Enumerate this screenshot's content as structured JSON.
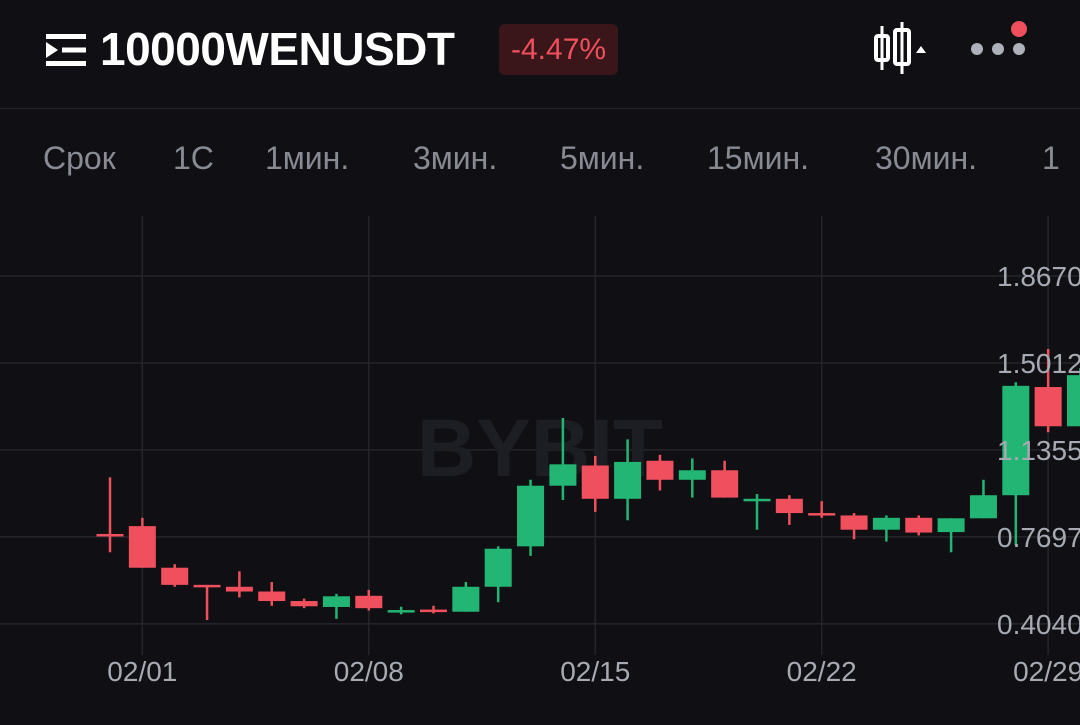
{
  "header": {
    "pair": "10000WENUSDT",
    "change": "-4.47%",
    "icons": [
      "menu-icon",
      "candlestick-chart-icon",
      "more-icon",
      "notification-dot"
    ]
  },
  "tabs": [
    "Срок",
    "1С",
    "1мин.",
    "3мин.",
    "5мин.",
    "15мин.",
    "30мин.",
    "1"
  ],
  "colors": {
    "up": "#22b573",
    "down": "#f0505d",
    "background": "#101014",
    "grid": "#24252b"
  },
  "watermark": "BYBIT",
  "chart_data": {
    "type": "candlestick",
    "x_ticks": [
      "02/01",
      "02/08",
      "02/15",
      "02/22",
      "02/29"
    ],
    "y_ticks": [
      "1.8670",
      "1.5012",
      "1.1355",
      "0.7697",
      "0.4040"
    ],
    "ylim": [
      0.2,
      2.1
    ],
    "grid": true,
    "candles": [
      {
        "date": "01/31",
        "open": 0.782,
        "high": 1.02,
        "low": 0.705,
        "close": 0.78
      },
      {
        "date": "02/01",
        "open": 0.815,
        "high": 0.85,
        "low": 0.64,
        "close": 0.64
      },
      {
        "date": "02/02",
        "open": 0.64,
        "high": 0.655,
        "low": 0.56,
        "close": 0.568
      },
      {
        "date": "02/03",
        "open": 0.568,
        "high": 0.568,
        "low": 0.42,
        "close": 0.56
      },
      {
        "date": "02/04",
        "open": 0.56,
        "high": 0.625,
        "low": 0.515,
        "close": 0.54
      },
      {
        "date": "02/05",
        "open": 0.54,
        "high": 0.58,
        "low": 0.48,
        "close": 0.5
      },
      {
        "date": "02/06",
        "open": 0.5,
        "high": 0.51,
        "low": 0.47,
        "close": 0.478
      },
      {
        "date": "02/07",
        "open": 0.475,
        "high": 0.53,
        "low": 0.425,
        "close": 0.52
      },
      {
        "date": "02/08",
        "open": 0.522,
        "high": 0.547,
        "low": 0.46,
        "close": 0.47
      },
      {
        "date": "02/09",
        "open": 0.46,
        "high": 0.476,
        "low": 0.444,
        "close": 0.462
      },
      {
        "date": "02/10",
        "open": 0.464,
        "high": 0.48,
        "low": 0.448,
        "close": 0.455
      },
      {
        "date": "02/11",
        "open": 0.455,
        "high": 0.58,
        "low": 0.455,
        "close": 0.56
      },
      {
        "date": "02/12",
        "open": 0.56,
        "high": 0.73,
        "low": 0.495,
        "close": 0.72
      },
      {
        "date": "02/13",
        "open": 0.73,
        "high": 1.01,
        "low": 0.69,
        "close": 0.985
      },
      {
        "date": "02/14",
        "open": 0.985,
        "high": 1.27,
        "low": 0.925,
        "close": 1.075
      },
      {
        "date": "02/15",
        "open": 1.07,
        "high": 1.11,
        "low": 0.875,
        "close": 0.93
      },
      {
        "date": "02/16",
        "open": 0.93,
        "high": 1.18,
        "low": 0.84,
        "close": 1.085
      },
      {
        "date": "02/17",
        "open": 1.09,
        "high": 1.115,
        "low": 0.965,
        "close": 1.01
      },
      {
        "date": "02/18",
        "open": 1.01,
        "high": 1.1,
        "low": 0.935,
        "close": 1.05
      },
      {
        "date": "02/19",
        "open": 1.05,
        "high": 1.09,
        "low": 0.935,
        "close": 0.935
      },
      {
        "date": "02/20",
        "open": 0.93,
        "high": 0.95,
        "low": 0.8,
        "close": 0.93
      },
      {
        "date": "02/21",
        "open": 0.93,
        "high": 0.945,
        "low": 0.82,
        "close": 0.87
      },
      {
        "date": "02/22",
        "open": 0.87,
        "high": 0.92,
        "low": 0.85,
        "close": 0.868
      },
      {
        "date": "02/23",
        "open": 0.86,
        "high": 0.87,
        "low": 0.76,
        "close": 0.8
      },
      {
        "date": "02/24",
        "open": 0.8,
        "high": 0.86,
        "low": 0.75,
        "close": 0.85
      },
      {
        "date": "02/25",
        "open": 0.85,
        "high": 0.86,
        "low": 0.776,
        "close": 0.788
      },
      {
        "date": "02/26",
        "open": 0.79,
        "high": 0.848,
        "low": 0.705,
        "close": 0.848
      },
      {
        "date": "02/27",
        "open": 0.848,
        "high": 1.01,
        "low": 0.848,
        "close": 0.945
      },
      {
        "date": "02/28",
        "open": 0.945,
        "high": 1.42,
        "low": 0.735,
        "close": 1.405
      },
      {
        "date": "02/29",
        "open": 1.4,
        "high": 1.56,
        "low": 1.21,
        "close": 1.235
      },
      {
        "date": "03/01",
        "open": 1.235,
        "high": 1.48,
        "low": 1.235,
        "close": 1.45
      }
    ]
  }
}
